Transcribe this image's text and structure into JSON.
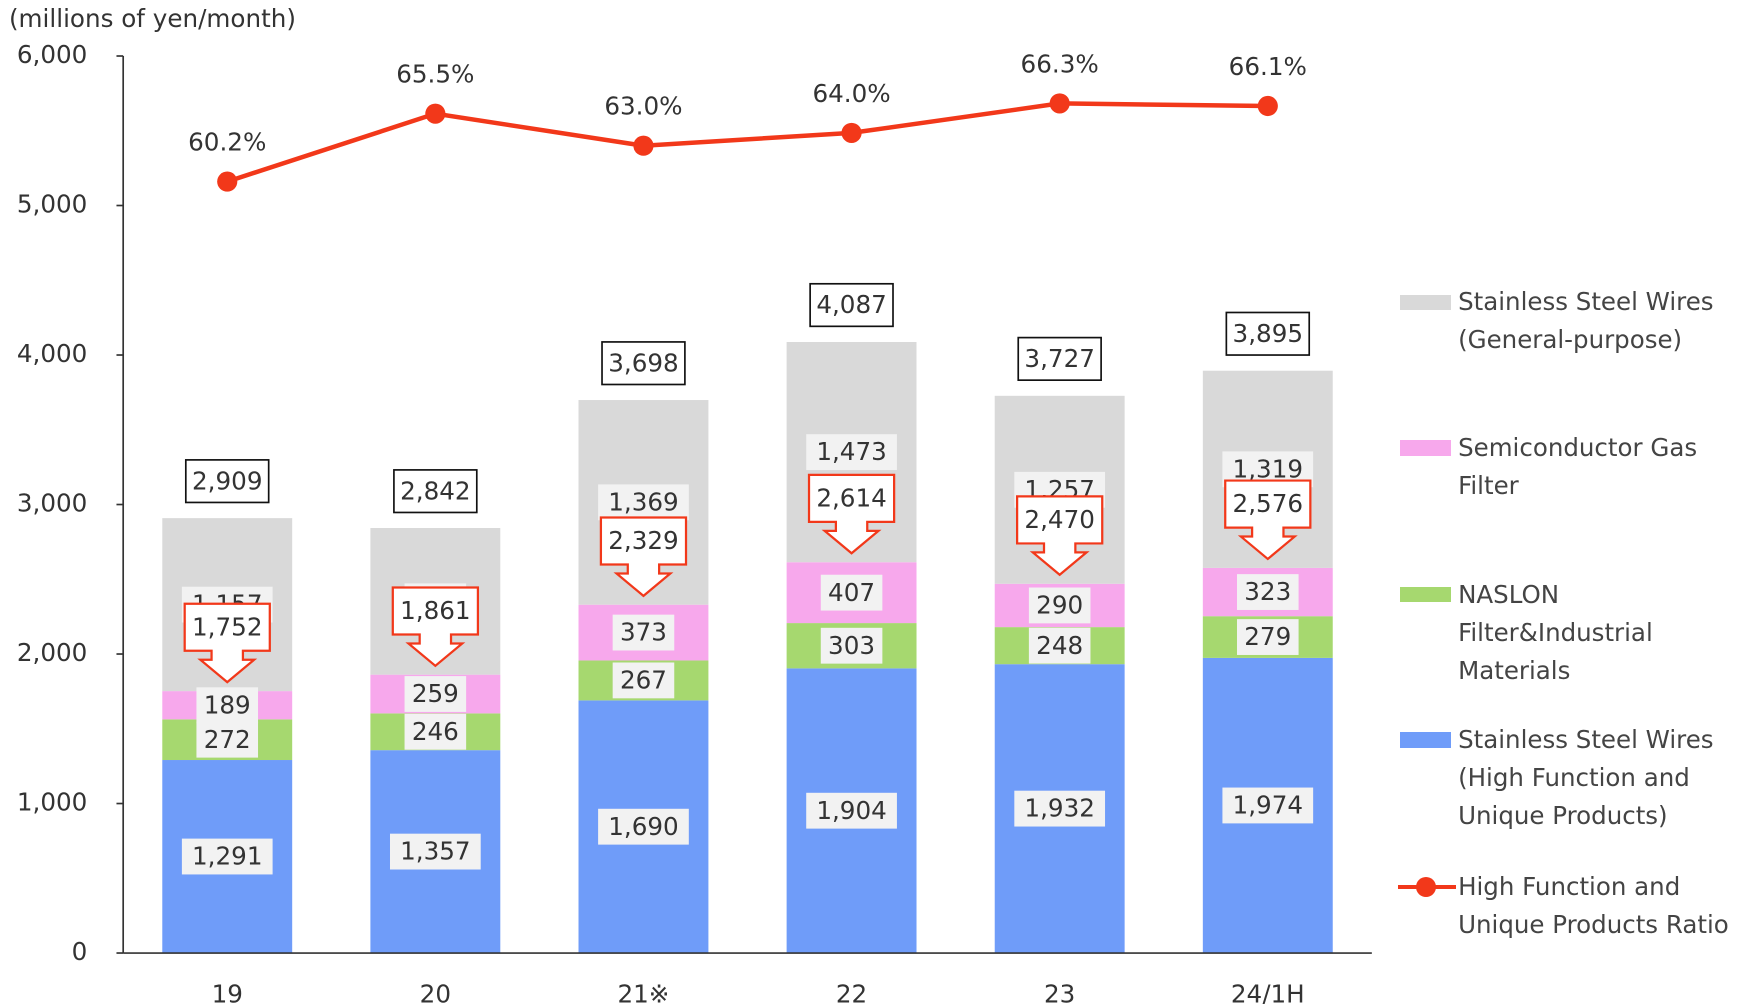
{
  "chart_data": {
    "type": "bar",
    "y_axis_label": "(millions of yen/month)",
    "categories": [
      "19",
      "20",
      "21※",
      "22",
      "23",
      "24/1H"
    ],
    "series": [
      {
        "name": "Stainless Steel Wires (High Function and Unique Products)",
        "color": "#6f9cf9",
        "values": [
          1291,
          1357,
          1690,
          1904,
          1932,
          1974
        ],
        "value_labels": [
          "1,291",
          "1,357",
          "1,690",
          "1,904",
          "1,932",
          "1,974"
        ]
      },
      {
        "name": "NASLON Filter&Industrial Materials",
        "color": "#a6d86f",
        "values": [
          272,
          246,
          267,
          303,
          248,
          279
        ]
      },
      {
        "name": "Semiconductor Gas Filter",
        "color": "#f7a8ec",
        "values": [
          189,
          259,
          373,
          407,
          290,
          323
        ]
      },
      {
        "name": "Stainless Steel Wires (General-purpose)",
        "color": "#d9d9d9",
        "values": [
          1157,
          981,
          1369,
          1473,
          1257,
          1319
        ],
        "value_labels": [
          "1,157",
          "981",
          "1,369",
          "1,473",
          "1,257",
          "1,319"
        ]
      },
      {
        "name": "High Function and Unique Products Ratio",
        "type": "line",
        "axis": "y2",
        "color": "#f2381a",
        "values": [
          60.2,
          65.5,
          63.0,
          64.0,
          66.3,
          66.1
        ],
        "value_labels": [
          "60.2%",
          "65.5%",
          "63.0%",
          "64.0%",
          "66.3%",
          "66.1%"
        ]
      }
    ],
    "subtotals": [
      1752,
      1861,
      2329,
      2614,
      2470,
      2576
    ],
    "subtotal_labels": [
      "1,752",
      "1,861",
      "2,329",
      "2,614",
      "2,470",
      "2,576"
    ],
    "totals": [
      2909,
      2842,
      3698,
      4087,
      3727,
      3895
    ],
    "total_labels": [
      "2,909",
      "2,842",
      "3,698",
      "4,087",
      "3,727",
      "3,895"
    ],
    "ylim": [
      0,
      6000
    ],
    "yticks": [
      0,
      {
        "value": 1000,
        "label": "1,000"
      },
      {
        "value": 2000,
        "label": "2,000"
      },
      {
        "value": 3000,
        "label": "3,000"
      },
      {
        "value": 4000,
        "label": "4,000"
      },
      {
        "value": 5000,
        "label": "5,000"
      },
      {
        "value": 6000,
        "label": "6,000"
      }
    ],
    "y2lim": [
      0,
      70
    ],
    "subtotal_color": "#f2381a",
    "legend": "right"
  }
}
